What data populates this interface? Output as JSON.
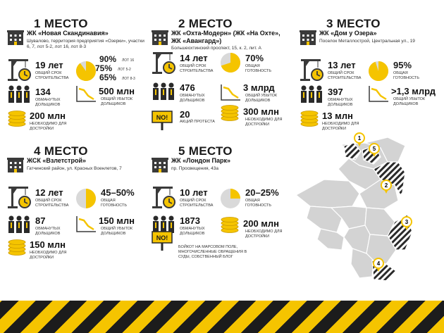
{
  "colors": {
    "accent": "#f5c400",
    "dark": "#1c1c1c",
    "grey": "#d3d3d3"
  },
  "places": [
    {
      "place": "1 МЕСТО",
      "name": "ЖК «Новая Скандинавия»",
      "address": "Шувалово, территория предприятия «Озерки», участки 6, 7, лот 5-2, лот 16, лот 8-3",
      "years": "19 лет",
      "years_label": "ОБЩИЙ СРОК СТРОИТЕЛЬСТВА",
      "readiness": [
        "90%",
        "75%",
        "65%"
      ],
      "readiness_lots": [
        "ЛОТ 16",
        "ЛОТ 5-2",
        "ЛОТ 8-3"
      ],
      "readiness_level": 0.9,
      "victims": "134",
      "victims_label": "ОБМАНУТЫХ ДОЛЬЩИКОВ",
      "loss": "500 млн",
      "loss_label": "ОБЩИЙ УБЫТОК ДОЛЬЩИКОВ",
      "need": "200 млн",
      "need_label": "НЕОБХОДИМО ДЛЯ ДОСТРОЙКИ"
    },
    {
      "place": "2 МЕСТО",
      "name": "ЖК «Охта-Модерн» (ЖК «На Охте», ЖК «Авангард»)",
      "address": "Большеохтинский проспект, 15, к. 2, лит. А",
      "years": "14 лет",
      "years_label": "ОБЩИЙ СРОК СТРОИТЕЛЬСТВА",
      "readiness": [
        "70%"
      ],
      "readiness_label": "ОБЩАЯ ГОТОВНОСТЬ",
      "readiness_level": 0.7,
      "victims": "476",
      "victims_label": "ОБМАНУТЫХ ДОЛЬЩИКОВ",
      "loss": "3 млрд",
      "loss_label": "ОБЩИЙ УБЫТОК ДОЛЬЩИКОВ",
      "need": "300 млн",
      "need_label": "НЕОБХОДИМО ДЛЯ ДОСТРОЙКИ",
      "protests": "20",
      "protests_label": "АКЦИЙ ПРОТЕСТА",
      "no_sign": "NO!"
    },
    {
      "place": "3 МЕСТО",
      "name": "ЖК «Дом у Озера»",
      "address": "Поселок Металлострой, Центральная ул., 19",
      "years": "13 лет",
      "years_label": "ОБЩИЙ СРОК СТРОИТЕЛЬСТВА",
      "readiness": [
        "95%"
      ],
      "readiness_label": "ОБЩАЯ ГОТОВНОСТЬ",
      "readiness_level": 0.95,
      "victims": "397",
      "victims_label": "ОБМАНУТЫХ ДОЛЬЩИКОВ",
      "loss": ">1,3 млрд",
      "loss_label": "ОБЩИЙ УБЫТОК ДОЛЬЩИКОВ",
      "need": "13 млн",
      "need_label": "НЕОБХОДИМО ДЛЯ ДОСТРОЙКИ"
    },
    {
      "place": "4 МЕСТО",
      "name": "ЖСК «Взлетстрой»",
      "address": "Гатчинский район, ул. Красных Военлетов, 7",
      "years": "12 лет",
      "years_label": "ОБЩИЙ СРОК СТРОИТЕЛЬСТВА",
      "readiness": [
        "45–50%"
      ],
      "readiness_label": "ОБЩАЯ ГОТОВНОСТЬ",
      "readiness_level": 0.5,
      "victims": "87",
      "victims_label": "ОБМАНУТЫХ ДОЛЬЩИКОВ",
      "loss": "150 млн",
      "loss_label": "ОБЩИЙ УБЫТОК ДОЛЬЩИКОВ",
      "need": "150 млн",
      "need_label": "НЕОБХОДИМО ДЛЯ ДОСТРОЙКИ"
    },
    {
      "place": "5 МЕСТО",
      "name": "ЖК «Лондон Парк»",
      "address": "пр. Просвещения, 43а",
      "years": "10 лет",
      "years_label": "ОБЩИЙ СРОК СТРОИТЕЛЬСТВА",
      "readiness": [
        "20–25%"
      ],
      "readiness_label": "ОБЩАЯ ГОТОВНОСТЬ",
      "readiness_level": 0.25,
      "victims": "1873",
      "victims_label": "ОБМАНУТЫХ ДОЛЬЩИКОВ",
      "need": "200 млн",
      "need_label": "НЕОБХОДИМО ДЛЯ ДОСТРОЙКИ",
      "protest_note": "БОЙКОТ НА МАРСОВОМ ПОЛЕ, МНОГОЧИСЛЕННЫЕ ОБРАЩЕНИЯ В СУДЫ, СОБСТВЕННЫЙ БЛОГ",
      "no_sign": "NO!"
    }
  ],
  "map": {
    "pins": [
      "1",
      "5",
      "2",
      "3",
      "4"
    ]
  }
}
